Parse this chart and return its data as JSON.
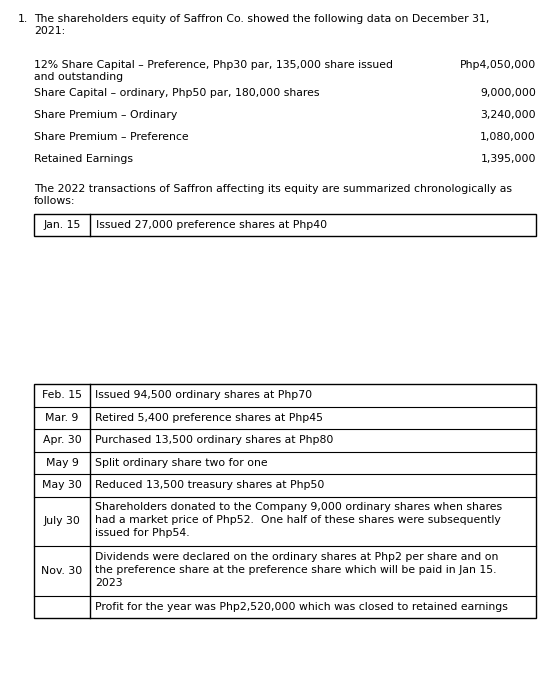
{
  "title_number": "1.",
  "title_text": "The shareholders equity of Saffron Co. showed the following data on December 31,\n2021:",
  "equity_items": [
    {
      "label": "12% Share Capital – Preference, Php30 par, 135,000 share issued\nand outstanding",
      "value": "Php4,050,000"
    },
    {
      "label": "Share Capital – ordinary, Php50 par, 180,000 shares",
      "value": "9,000,000"
    },
    {
      "label": "Share Premium – Ordinary",
      "value": "3,240,000"
    },
    {
      "label": "Share Premium – Preference",
      "value": "1,080,000"
    },
    {
      "label": "Retained Earnings",
      "value": "1,395,000"
    }
  ],
  "intro_text": "The 2022 transactions of Saffron affecting its equity are summarized chronologically as\nfollows:",
  "jan_row": {
    "date": "Jan. 15",
    "description": "Issued 27,000 preference shares at Php40"
  },
  "transactions": [
    {
      "date": "Feb. 15",
      "description": "Issued 94,500 ordinary shares at Php70",
      "lines": 1
    },
    {
      "date": "Mar. 9",
      "description": "Retired 5,400 preference shares at Php45",
      "lines": 1
    },
    {
      "date": "Apr. 30",
      "description": "Purchased 13,500 ordinary shares at Php80",
      "lines": 1
    },
    {
      "date": "May 9",
      "description": "Split ordinary share two for one",
      "lines": 1
    },
    {
      "date": "May 30",
      "description": "Reduced 13,500 treasury shares at Php50",
      "lines": 1
    },
    {
      "date": "July 30",
      "description": "Shareholders donated to the Company 9,000 ordinary shares when shares\nhad a market price of Php52.  One half of these shares were subsequently\nissued for Php54.",
      "lines": 3
    },
    {
      "date": "Nov. 30",
      "description": "Dividends were declared on the ordinary shares at Php2 per share and on\nthe preference share at the preference share which will be paid in Jan 15.\n2023",
      "lines": 3
    },
    {
      "date": "",
      "description": "Profit for the year was Php2,520,000 which was closed to retained earnings",
      "lines": 1
    }
  ],
  "bg_color": "#ffffff",
  "text_color": "#000000",
  "font_size": 7.8,
  "line_color": "#333333"
}
